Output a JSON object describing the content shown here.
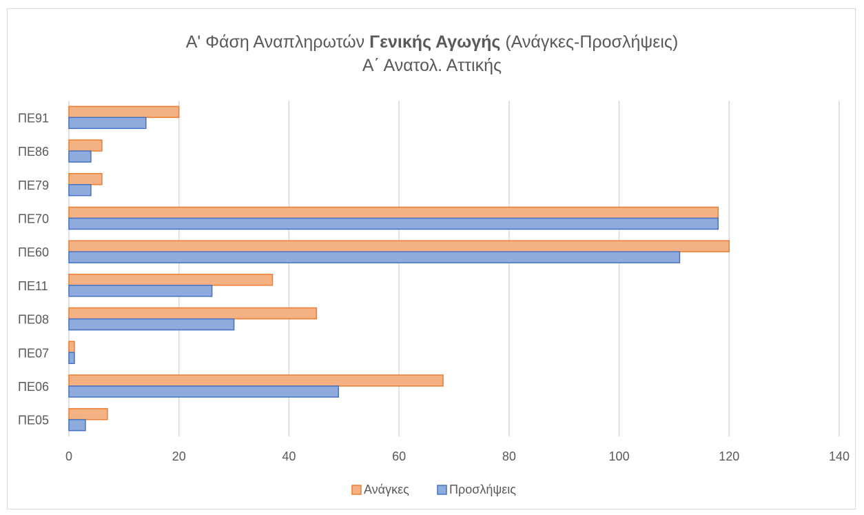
{
  "chart_data": {
    "type": "bar",
    "orientation": "horizontal",
    "title": {
      "line1_part1": "Α' Φάση Αναπληρωτών ",
      "line1_bold": "Γενικής Αγωγής",
      "line1_part2": " (Ανάγκες-Προσλήψεις)",
      "line2": "Α΄ Ανατολ. Αττικής"
    },
    "categories": [
      "ΠΕ05",
      "ΠΕ06",
      "ΠΕ07",
      "ΠΕ08",
      "ΠΕ11",
      "ΠΕ60",
      "ΠΕ70",
      "ΠΕ79",
      "ΠΕ86",
      "ΠΕ91"
    ],
    "series": [
      {
        "name": "Ανάγκες",
        "values": [
          7,
          68,
          1,
          45,
          37,
          120,
          118,
          6,
          6,
          20
        ],
        "fill": "#F4B183",
        "stroke": "#ED7D31"
      },
      {
        "name": "Προσλήψεις",
        "values": [
          3,
          49,
          1,
          30,
          26,
          111,
          118,
          4,
          4,
          14
        ],
        "fill": "#8FAADC",
        "stroke": "#4472C4"
      }
    ],
    "xlim": [
      0,
      140
    ],
    "x_ticks": [
      0,
      20,
      40,
      60,
      80,
      100,
      120,
      140
    ],
    "grid": true,
    "legend_position": "bottom"
  }
}
